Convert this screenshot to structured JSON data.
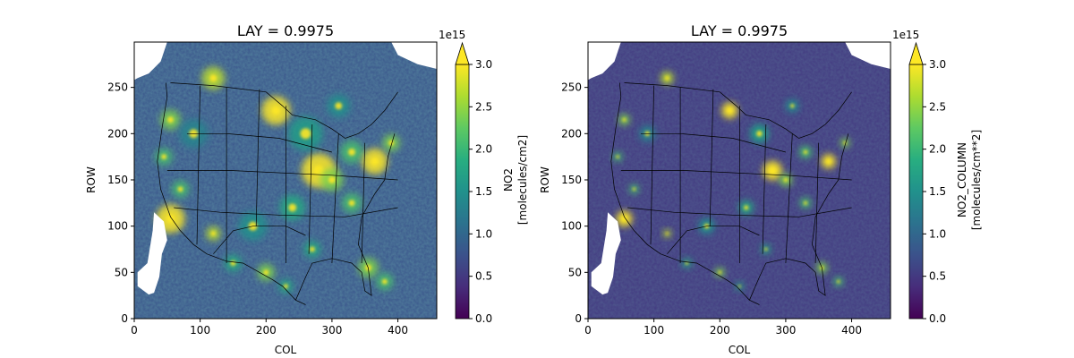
{
  "chart_data": [
    {
      "type": "heatmap",
      "title": "LAY = 0.9975",
      "xlabel": "COL",
      "ylabel": "ROW",
      "xlim": [
        0,
        459
      ],
      "ylim": [
        0,
        299
      ],
      "xticks": [
        0,
        100,
        200,
        300,
        400
      ],
      "yticks": [
        0,
        50,
        100,
        150,
        200,
        250
      ],
      "colorbar": {
        "label_line1": "NO2",
        "label_line2": "[molecules/cm2]",
        "range": [
          0.0,
          3.0
        ],
        "ticks": [
          "0.0",
          "0.5",
          "1.0",
          "1.5",
          "2.0",
          "2.5",
          "3.0"
        ],
        "offset_text": "1e15",
        "extend": "max",
        "colormap": "viridis"
      },
      "background_level": 0.7
    },
    {
      "type": "heatmap",
      "title": "LAY = 0.9975",
      "xlabel": "COL",
      "ylabel": "ROW",
      "xlim": [
        0,
        459
      ],
      "ylim": [
        0,
        299
      ],
      "xticks": [
        0,
        100,
        200,
        300,
        400
      ],
      "yticks": [
        0,
        50,
        100,
        150,
        200,
        250
      ],
      "colorbar": {
        "label_line1": "NO2_COLUMN",
        "label_line2": "[molecules/cm**2]",
        "range": [
          0.0,
          3.0
        ],
        "ticks": [
          "0.0",
          "0.5",
          "1.0",
          "1.5",
          "2.0",
          "2.5",
          "3.0"
        ],
        "offset_text": "1e15",
        "extend": "max",
        "colormap": "viridis"
      },
      "background_level": 0.4
    }
  ],
  "colors": {
    "viridis_low": "#440154",
    "viridis_mid": "#21918c",
    "viridis_high": "#fde725",
    "border": "#000000"
  }
}
